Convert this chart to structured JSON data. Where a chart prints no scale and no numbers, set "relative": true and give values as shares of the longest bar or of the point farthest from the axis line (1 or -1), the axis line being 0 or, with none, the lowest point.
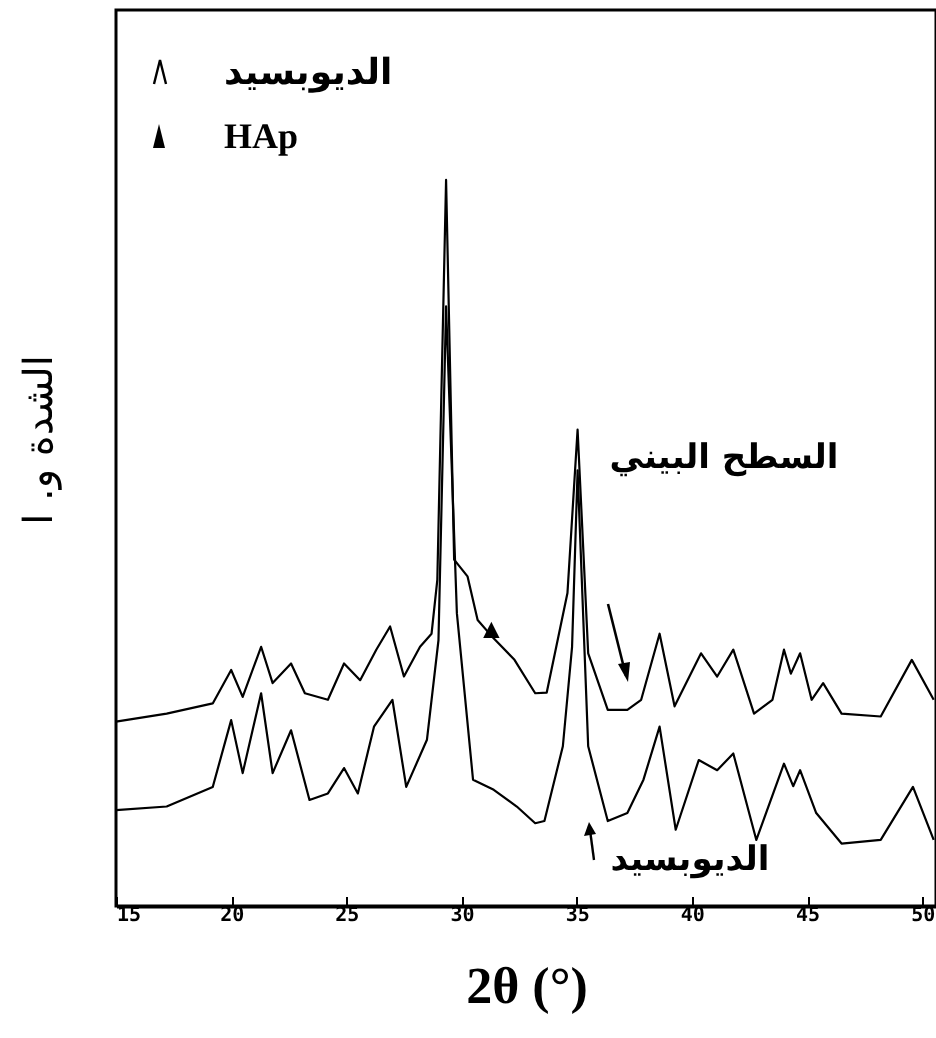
{
  "chart_data": {
    "type": "line",
    "xlabel": "2θ (°)",
    "ylabel": "الشدة و. ا",
    "relative": true,
    "xlim": [
      15,
      50.6
    ],
    "xticks": [
      15,
      20,
      25,
      30,
      35,
      40,
      45,
      50
    ],
    "grid": false,
    "annotations": [
      "الديوبسيد",
      "HAp",
      {
        "text": "▲",
        "x": 31.3,
        "y": 0.38
      }
    ],
    "series": [
      {
        "name": "السطح البيني",
        "color": "#000000",
        "x": [
          15.0,
          17.2,
          19.2,
          20.0,
          20.5,
          21.3,
          21.8,
          22.6,
          23.2,
          24.2,
          24.9,
          25.6,
          26.3,
          26.9,
          27.5,
          28.2,
          28.7,
          28.95,
          29.33,
          29.68,
          30.26,
          30.7,
          31.3,
          32.3,
          33.2,
          33.7,
          34.6,
          35.04,
          35.5,
          36.35,
          37.2,
          37.8,
          38.6,
          39.25,
          40.4,
          41.1,
          41.8,
          42.7,
          43.5,
          44.0,
          44.3,
          44.7,
          45.2,
          45.7,
          46.5,
          48.2,
          49.55,
          50.5
        ],
        "values": [
          0.254,
          0.265,
          0.279,
          0.325,
          0.288,
          0.357,
          0.307,
          0.334,
          0.293,
          0.284,
          0.334,
          0.311,
          0.353,
          0.385,
          0.316,
          0.357,
          0.375,
          0.449,
          1.0,
          0.477,
          0.454,
          0.394,
          0.372,
          0.339,
          0.293,
          0.294,
          0.431,
          0.656,
          0.348,
          0.27,
          0.27,
          0.284,
          0.375,
          0.275,
          0.348,
          0.316,
          0.353,
          0.265,
          0.284,
          0.353,
          0.32,
          0.348,
          0.284,
          0.307,
          0.265,
          0.261,
          0.339,
          0.284
        ]
      },
      {
        "name": "الديوبسيد",
        "color": "#000000",
        "x": [
          15.0,
          17.2,
          19.2,
          20.0,
          20.5,
          21.3,
          21.8,
          22.6,
          23.4,
          24.2,
          24.9,
          25.5,
          26.2,
          27.0,
          27.6,
          28.5,
          29.0,
          29.33,
          29.8,
          30.5,
          31.4,
          32.4,
          33.2,
          33.6,
          34.4,
          34.8,
          35.04,
          35.5,
          36.35,
          37.2,
          37.9,
          38.6,
          39.3,
          40.3,
          41.1,
          41.8,
          42.8,
          44.0,
          44.4,
          44.7,
          45.4,
          46.5,
          48.2,
          49.6,
          50.5
        ],
        "values": [
          0.132,
          0.137,
          0.164,
          0.256,
          0.183,
          0.293,
          0.183,
          0.242,
          0.146,
          0.155,
          0.19,
          0.155,
          0.247,
          0.284,
          0.164,
          0.229,
          0.366,
          0.826,
          0.403,
          0.174,
          0.16,
          0.137,
          0.114,
          0.117,
          0.22,
          0.357,
          0.6,
          0.22,
          0.117,
          0.128,
          0.174,
          0.247,
          0.105,
          0.201,
          0.187,
          0.21,
          0.091,
          0.196,
          0.165,
          0.187,
          0.128,
          0.086,
          0.091,
          0.164,
          0.091
        ]
      }
    ]
  }
}
